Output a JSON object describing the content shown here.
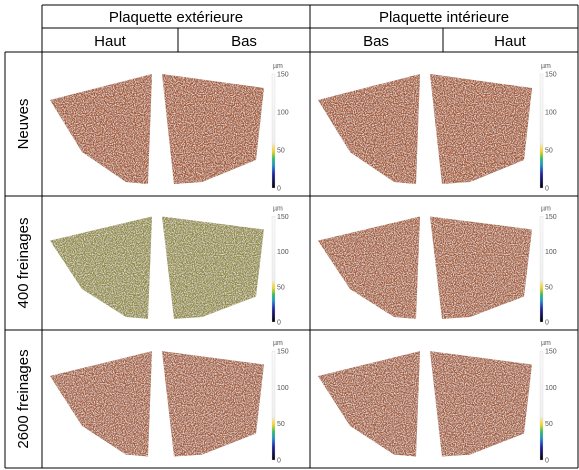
{
  "header": {
    "groups": [
      "Plaquette extérieure",
      "Plaquette intérieure"
    ],
    "subheaders": [
      "Haut",
      "Bas",
      "Bas",
      "Haut"
    ]
  },
  "rows": [
    {
      "label": "Neuves",
      "scales": [
        {
          "unit": "µm",
          "ticks": [
            "150",
            "100",
            "50",
            "0"
          ]
        },
        {
          "unit": "µm",
          "ticks": [
            "150",
            "100",
            "50",
            "0"
          ]
        }
      ]
    },
    {
      "label": "400 freinages",
      "scales": [
        {
          "unit": "µm",
          "ticks": [
            "150",
            "100",
            "50",
            "0"
          ]
        },
        {
          "unit": "µm",
          "ticks": [
            "150",
            "100",
            "50",
            "0"
          ]
        }
      ]
    },
    {
      "label": "2600 freinages",
      "scales": [
        {
          "unit": "µm",
          "ticks": [
            "150",
            "100",
            "50",
            "0"
          ]
        },
        {
          "unit": "µm",
          "ticks": [
            "150",
            "100",
            "50",
            "0"
          ]
        }
      ]
    }
  ]
}
